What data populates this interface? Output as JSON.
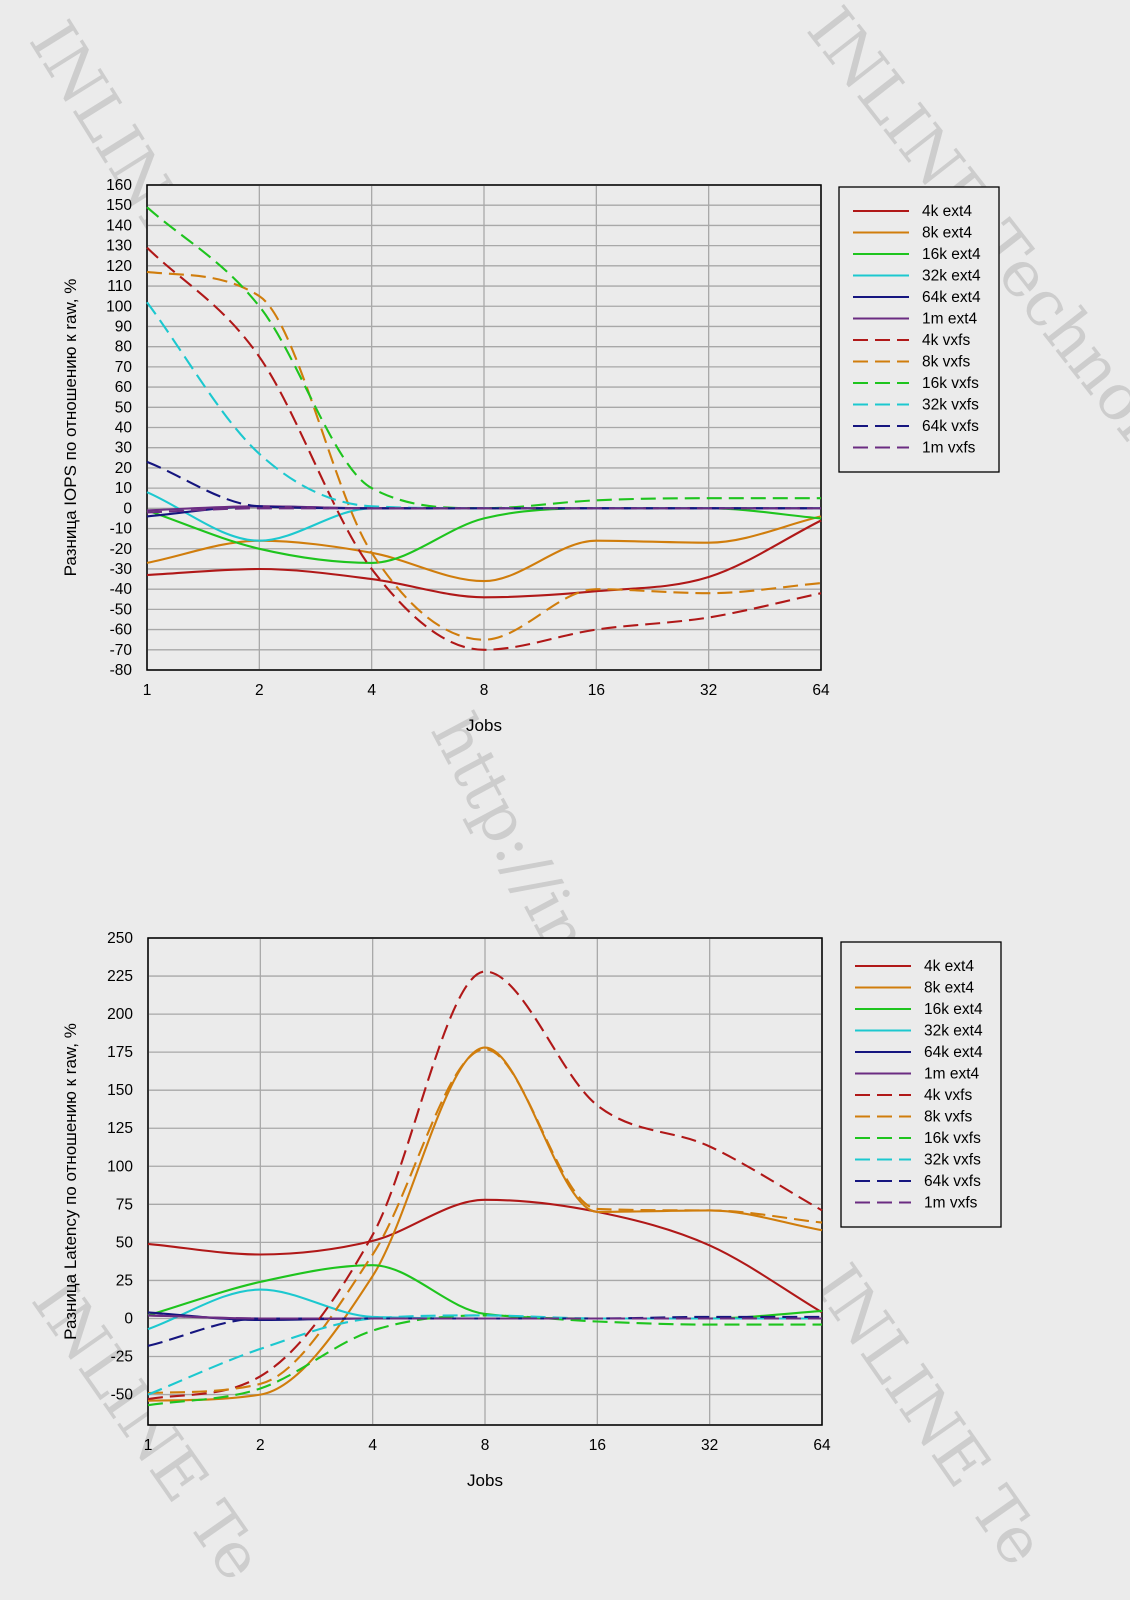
{
  "watermarks": [
    "INLINE Technologies",
    "INLINE Technologies",
    "http://in-line.ru/",
    "INLINE Te",
    "INLINE Te"
  ],
  "colors": {
    "4k": "#b01818",
    "8k": "#d07d0c",
    "16k": "#1ec41e",
    "32k": "#1cc8cf",
    "64k": "#15157f",
    "1m": "#6b2c82"
  },
  "chart_data": [
    {
      "type": "line",
      "title": "",
      "xlabel": "Jobs",
      "ylabel": "Разница IOPS по отношению к raw, %",
      "x_scale": "log2",
      "x": [
        1,
        2,
        4,
        8,
        16,
        32,
        64
      ],
      "x_tick_labels": [
        "1",
        "2",
        "4",
        "8",
        "16",
        "32",
        "64"
      ],
      "ylim": [
        -80,
        160
      ],
      "y_ticks": [
        160,
        150,
        140,
        130,
        120,
        110,
        100,
        90,
        80,
        70,
        60,
        50,
        40,
        30,
        20,
        10,
        0,
        -10,
        -20,
        -30,
        -40,
        -50,
        -60,
        -70,
        -80
      ],
      "grid": true,
      "legend_position": "right",
      "series": [
        {
          "name": "4k ext4",
          "color_key": "4k",
          "dashed": false,
          "values": [
            -33,
            -30,
            -35,
            -44,
            -41,
            -34,
            -6
          ]
        },
        {
          "name": "8k ext4",
          "color_key": "8k",
          "dashed": false,
          "values": [
            -27,
            -16,
            -22,
            -36,
            -16,
            -17,
            -4
          ]
        },
        {
          "name": "16k ext4",
          "color_key": "16k",
          "dashed": false,
          "values": [
            -1,
            -20,
            -27,
            -5,
            0,
            0,
            -5
          ]
        },
        {
          "name": "32k ext4",
          "color_key": "32k",
          "dashed": false,
          "values": [
            8,
            -16,
            0,
            0,
            0,
            0,
            0
          ]
        },
        {
          "name": "64k ext4",
          "color_key": "64k",
          "dashed": false,
          "values": [
            -4,
            1,
            0,
            0,
            0,
            0,
            0
          ]
        },
        {
          "name": "1m ext4",
          "color_key": "1m",
          "dashed": false,
          "values": [
            -1,
            1,
            0,
            0,
            0,
            0,
            0
          ]
        },
        {
          "name": "4k vxfs",
          "color_key": "4k",
          "dashed": true,
          "values": [
            129,
            75,
            -30,
            -70,
            -60,
            -54,
            -42
          ]
        },
        {
          "name": "8k vxfs",
          "color_key": "8k",
          "dashed": true,
          "values": [
            117,
            105,
            -22,
            -65,
            -40,
            -42,
            -37
          ]
        },
        {
          "name": "16k vxfs",
          "color_key": "16k",
          "dashed": true,
          "values": [
            149,
            100,
            10,
            0,
            4,
            5,
            5
          ]
        },
        {
          "name": "32k vxfs",
          "color_key": "32k",
          "dashed": true,
          "values": [
            102,
            27,
            1,
            0,
            0,
            0,
            0
          ]
        },
        {
          "name": "64k vxfs",
          "color_key": "64k",
          "dashed": true,
          "values": [
            23,
            1,
            0,
            0,
            0,
            0,
            0
          ]
        },
        {
          "name": "1m vxfs",
          "color_key": "1m",
          "dashed": true,
          "values": [
            -2,
            0,
            0,
            0,
            0,
            0,
            0
          ]
        }
      ]
    },
    {
      "type": "line",
      "title": "",
      "xlabel": "Jobs",
      "ylabel": "Разница Latency по отношению к raw, %",
      "x_scale": "log2",
      "x": [
        1,
        2,
        4,
        8,
        16,
        32,
        64
      ],
      "x_tick_labels": [
        "1",
        "2",
        "4",
        "8",
        "16",
        "32",
        "64"
      ],
      "ylim": [
        -70,
        250
      ],
      "y_ticks": [
        250,
        225,
        200,
        175,
        150,
        125,
        100,
        75,
        50,
        25,
        0,
        -25,
        -50
      ],
      "grid": true,
      "legend_position": "right",
      "series": [
        {
          "name": "4k ext4",
          "color_key": "4k",
          "dashed": false,
          "values": [
            49,
            42,
            51,
            78,
            70,
            48,
            4
          ]
        },
        {
          "name": "8k ext4",
          "color_key": "8k",
          "dashed": false,
          "values": [
            -54,
            -50,
            28,
            178,
            70,
            71,
            58
          ]
        },
        {
          "name": "16k ext4",
          "color_key": "16k",
          "dashed": false,
          "values": [
            2,
            24,
            35,
            3,
            0,
            0,
            5
          ]
        },
        {
          "name": "32k ext4",
          "color_key": "32k",
          "dashed": false,
          "values": [
            -7,
            19,
            1,
            0,
            0,
            0,
            0
          ]
        },
        {
          "name": "64k ext4",
          "color_key": "64k",
          "dashed": false,
          "values": [
            4,
            -1,
            0,
            0,
            0,
            0,
            0
          ]
        },
        {
          "name": "1m ext4",
          "color_key": "1m",
          "dashed": false,
          "values": [
            2,
            0,
            0,
            0,
            0,
            0,
            0
          ]
        },
        {
          "name": "4k vxfs",
          "color_key": "4k",
          "dashed": true,
          "values": [
            -53,
            -38,
            55,
            228,
            140,
            113,
            71
          ]
        },
        {
          "name": "8k vxfs",
          "color_key": "8k",
          "dashed": true,
          "values": [
            -49,
            -43,
            42,
            177,
            72,
            71,
            63
          ]
        },
        {
          "name": "16k vxfs",
          "color_key": "16k",
          "dashed": true,
          "values": [
            -57,
            -46,
            -8,
            2,
            -2,
            -4,
            -4
          ]
        },
        {
          "name": "32k vxfs",
          "color_key": "32k",
          "dashed": true,
          "values": [
            -50,
            -20,
            0,
            2,
            0,
            0,
            0
          ]
        },
        {
          "name": "64k vxfs",
          "color_key": "64k",
          "dashed": true,
          "values": [
            -18,
            0,
            0,
            0,
            0,
            1,
            1
          ]
        },
        {
          "name": "1m vxfs",
          "color_key": "1m",
          "dashed": true,
          "values": [
            2,
            0,
            0,
            0,
            0,
            0,
            0
          ]
        }
      ]
    }
  ]
}
